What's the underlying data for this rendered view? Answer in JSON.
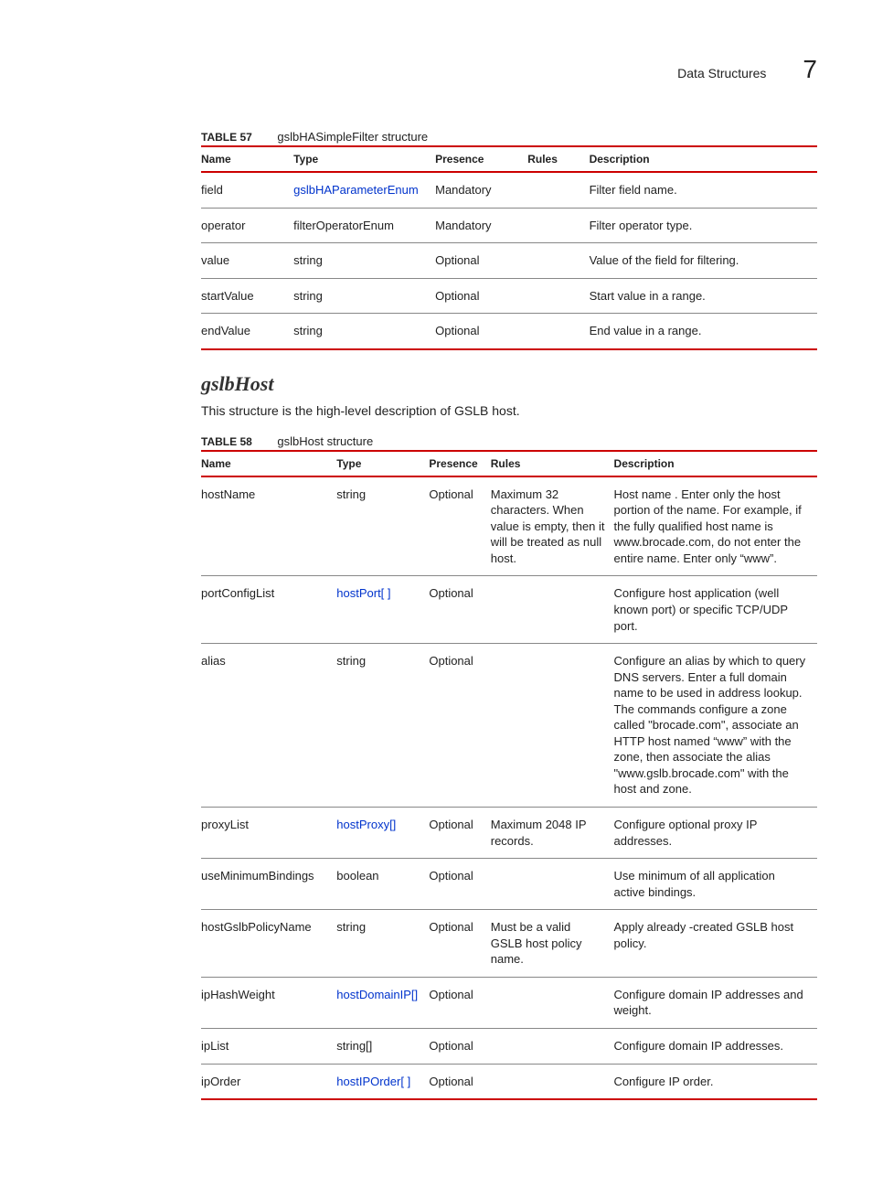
{
  "header": {
    "title": "Data Structures",
    "chapter": "7"
  },
  "columns": {
    "c1": "Name",
    "c2": "Type",
    "c3": "Presence",
    "c4": "Rules",
    "c5": "Description"
  },
  "table57": {
    "label": "TABLE 57",
    "caption": "gslbHASimpleFilter structure",
    "rows": [
      {
        "name": "field",
        "type": "gslbHAParameterEnum",
        "type_link": true,
        "presence": "Mandatory",
        "rules": "",
        "desc": "Filter field name."
      },
      {
        "name": "operator",
        "type": "filterOperatorEnum",
        "type_link": false,
        "presence": "Mandatory",
        "rules": "",
        "desc": "Filter operator type."
      },
      {
        "name": "value",
        "type": "string",
        "type_link": false,
        "presence": "Optional",
        "rules": "",
        "desc": "Value of the field for filtering."
      },
      {
        "name": "startValue",
        "type": "string",
        "type_link": false,
        "presence": "Optional",
        "rules": "",
        "desc": "Start value in a range."
      },
      {
        "name": "endValue",
        "type": "string",
        "type_link": false,
        "presence": "Optional",
        "rules": "",
        "desc": "End value in a range."
      }
    ]
  },
  "section": {
    "heading": "gslbHost",
    "text": "This structure is the high-level description of GSLB host."
  },
  "table58": {
    "label": "TABLE 58",
    "caption": "gslbHost structure",
    "rows": [
      {
        "name": "hostName",
        "type": "string",
        "type_link": false,
        "presence": "Optional",
        "rules": "Maximum 32 characters. When value is empty, then it will be treated as null host.",
        "desc": "Host name . Enter only the host portion of the name.  For example, if the fully  qualified host name is www.brocade.com, do not enter the entire name. Enter only “www”."
      },
      {
        "name": "portConfigList",
        "type": "hostPort[ ]",
        "type_link": true,
        "presence": "Optional",
        "rules": "",
        "desc": "Configure host application (well known port) or specific TCP/UDP port."
      },
      {
        "name": "alias",
        "type": "string",
        "type_link": false,
        "presence": "Optional",
        "rules": "",
        "desc": "Configure an alias by which to query DNS servers. Enter a full domain name to be used in address lookup. The commands configure a zone called \"brocade.com\", associate an HTTP host named “www” with the zone, then associate the alias \"www.gslb.brocade.com\" with the host and zone."
      },
      {
        "name": "proxyList",
        "type": "hostProxy[]",
        "type_link": true,
        "presence": "Optional",
        "rules": "Maximum 2048 IP records.",
        "desc": "Configure optional proxy IP addresses."
      },
      {
        "name": "useMinimumBindings",
        "type": "boolean",
        "type_link": false,
        "presence": "Optional",
        "rules": "",
        "desc": "Use minimum of all application active bindings."
      },
      {
        "name": "hostGslbPolicyName",
        "type": "string",
        "type_link": false,
        "presence": "Optional",
        "rules": "Must be a valid GSLB host policy name.",
        "desc": "Apply already -created GSLB host policy."
      },
      {
        "name": "ipHashWeight",
        "type": "hostDomainIP[]",
        "type_link": true,
        "presence": "Optional",
        "rules": "",
        "desc": "Configure domain IP addresses and weight."
      },
      {
        "name": "ipList",
        "type": "string[]",
        "type_link": false,
        "presence": "Optional",
        "rules": "",
        "desc": "Configure domain IP addresses."
      },
      {
        "name": "ipOrder",
        "type": "hostIPOrder[ ]",
        "type_link": true,
        "presence": "Optional",
        "rules": "",
        "desc": "Configure IP order."
      }
    ]
  }
}
